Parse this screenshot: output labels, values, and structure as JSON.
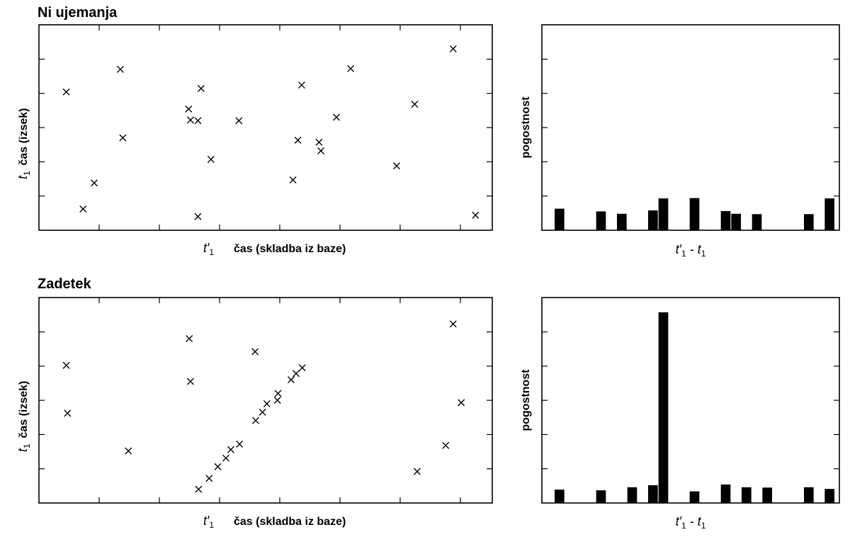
{
  "chart_data": [
    {
      "type": "scatter",
      "title": "Ni ujemanja",
      "xlabel": "čas (skladba iz baze)",
      "ylabel": "čas (izsek)",
      "x_marker": {
        "main": "t",
        "prime": "′",
        "sub": "1"
      },
      "y_marker": {
        "main": "t",
        "sub": "1"
      },
      "xlim": [
        0,
        7.3
      ],
      "ylim": [
        0,
        6
      ],
      "marker": "x",
      "points": [
        {
          "x": 0.44,
          "y": 4.04
        },
        {
          "x": 0.71,
          "y": 0.62
        },
        {
          "x": 0.89,
          "y": 1.38
        },
        {
          "x": 1.31,
          "y": 4.7
        },
        {
          "x": 1.35,
          "y": 2.7
        },
        {
          "x": 2.41,
          "y": 3.54
        },
        {
          "x": 2.44,
          "y": 3.22
        },
        {
          "x": 2.56,
          "y": 3.2
        },
        {
          "x": 2.61,
          "y": 4.14
        },
        {
          "x": 2.56,
          "y": 0.4
        },
        {
          "x": 2.77,
          "y": 2.07
        },
        {
          "x": 3.22,
          "y": 3.2
        },
        {
          "x": 4.23,
          "y": 4.24
        },
        {
          "x": 4.09,
          "y": 1.47
        },
        {
          "x": 4.17,
          "y": 2.63
        },
        {
          "x": 4.51,
          "y": 2.57
        },
        {
          "x": 4.54,
          "y": 2.32
        },
        {
          "x": 4.79,
          "y": 3.3
        },
        {
          "x": 5.02,
          "y": 4.72
        },
        {
          "x": 5.76,
          "y": 1.88
        },
        {
          "x": 6.05,
          "y": 3.68
        },
        {
          "x": 6.67,
          "y": 5.3
        },
        {
          "x": 7.03,
          "y": 0.44
        }
      ]
    },
    {
      "type": "bar",
      "xlabel": "t′₁ - t₁",
      "ylabel": "pogostnost",
      "ylim": [
        0,
        6
      ],
      "n_bins": 27,
      "bins": [
        0,
        4,
        6,
        9,
        10,
        13,
        16,
        17,
        19,
        24,
        26
      ],
      "values": [
        0.63,
        0.55,
        0.48,
        0.58,
        0.93,
        0.94,
        0.56,
        0.48,
        0.47,
        0.47,
        0.93
      ]
    },
    {
      "type": "scatter",
      "title": "Zadetek",
      "xlabel": "čas (skladba iz baze)",
      "ylabel": "čas (izsek)",
      "x_marker": {
        "main": "t",
        "prime": "′",
        "sub": "1"
      },
      "y_marker": {
        "main": "t",
        "sub": "1"
      },
      "xlim": [
        0,
        7.3
      ],
      "ylim": [
        0,
        6
      ],
      "marker": "x",
      "points": [
        {
          "x": 0.44,
          "y": 4.02
        },
        {
          "x": 0.46,
          "y": 2.62
        },
        {
          "x": 1.44,
          "y": 1.52
        },
        {
          "x": 2.42,
          "y": 4.8
        },
        {
          "x": 2.44,
          "y": 3.55
        },
        {
          "x": 2.57,
          "y": 0.4
        },
        {
          "x": 2.74,
          "y": 0.72
        },
        {
          "x": 2.88,
          "y": 1.06
        },
        {
          "x": 3.01,
          "y": 1.31
        },
        {
          "x": 3.09,
          "y": 1.56
        },
        {
          "x": 3.23,
          "y": 1.72
        },
        {
          "x": 3.49,
          "y": 2.41
        },
        {
          "x": 3.48,
          "y": 4.42
        },
        {
          "x": 3.6,
          "y": 2.65
        },
        {
          "x": 3.67,
          "y": 2.9
        },
        {
          "x": 3.84,
          "y": 3.0
        },
        {
          "x": 3.85,
          "y": 3.2
        },
        {
          "x": 4.06,
          "y": 3.6
        },
        {
          "x": 4.14,
          "y": 3.78
        },
        {
          "x": 4.24,
          "y": 3.95
        },
        {
          "x": 6.09,
          "y": 0.92
        },
        {
          "x": 6.55,
          "y": 1.68
        },
        {
          "x": 6.67,
          "y": 5.23
        },
        {
          "x": 6.8,
          "y": 2.93
        }
      ]
    },
    {
      "type": "bar",
      "xlabel": "t′₁ - t₁",
      "ylabel": "pogostnost",
      "ylim": [
        0,
        6
      ],
      "n_bins": 27,
      "bins": [
        0,
        4,
        7,
        9,
        10,
        13,
        16,
        18,
        20,
        24,
        26
      ],
      "values": [
        0.39,
        0.37,
        0.46,
        0.52,
        5.57,
        0.34,
        0.54,
        0.46,
        0.45,
        0.46,
        0.41
      ]
    }
  ]
}
